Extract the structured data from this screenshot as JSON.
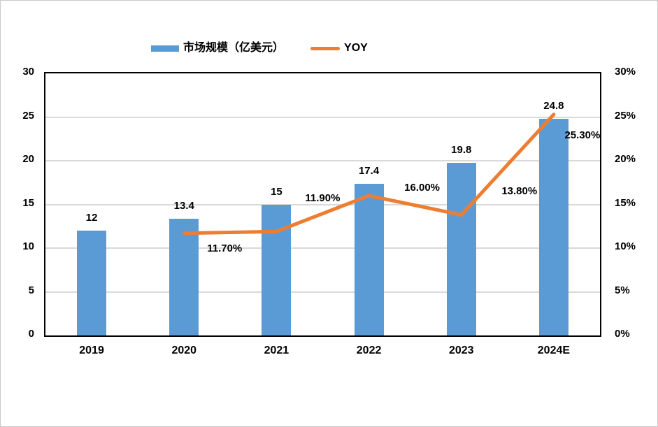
{
  "chart_data": {
    "type": "bar+line",
    "categories": [
      "2019",
      "2020",
      "2021",
      "2022",
      "2023",
      "2024E"
    ],
    "series": [
      {
        "name": "市场规模（亿美元）",
        "type": "bar",
        "axis": "left",
        "color": "#5B9BD5",
        "values": [
          12,
          13.4,
          15,
          17.4,
          19.8,
          24.8
        ],
        "data_labels": [
          "12",
          "13.4",
          "15",
          "17.4",
          "19.8",
          "24.8"
        ]
      },
      {
        "name": "YOY",
        "type": "line",
        "axis": "right",
        "color": "#ED7D31",
        "values": [
          null,
          11.7,
          11.9,
          16.0,
          13.8,
          25.3
        ],
        "data_labels": [
          null,
          "11.70%",
          "11.90%",
          "16.00%",
          "13.80%",
          "25.30%"
        ]
      }
    ],
    "left_axis": {
      "min": 0,
      "max": 30,
      "step": 5,
      "tick_labels": [
        "0",
        "5",
        "10",
        "15",
        "20",
        "25",
        "30"
      ]
    },
    "right_axis": {
      "min": 0,
      "max": 30,
      "step": 5,
      "tick_labels": [
        "0%",
        "5%",
        "10%",
        "15%",
        "20%",
        "25%",
        "30%"
      ]
    },
    "grid": true,
    "legend_position": "top",
    "colors": {
      "bar": "#5B9BD5",
      "line": "#ED7D31",
      "grid": "#D9D9D9",
      "axis": "#000000",
      "text": "#000000"
    }
  }
}
